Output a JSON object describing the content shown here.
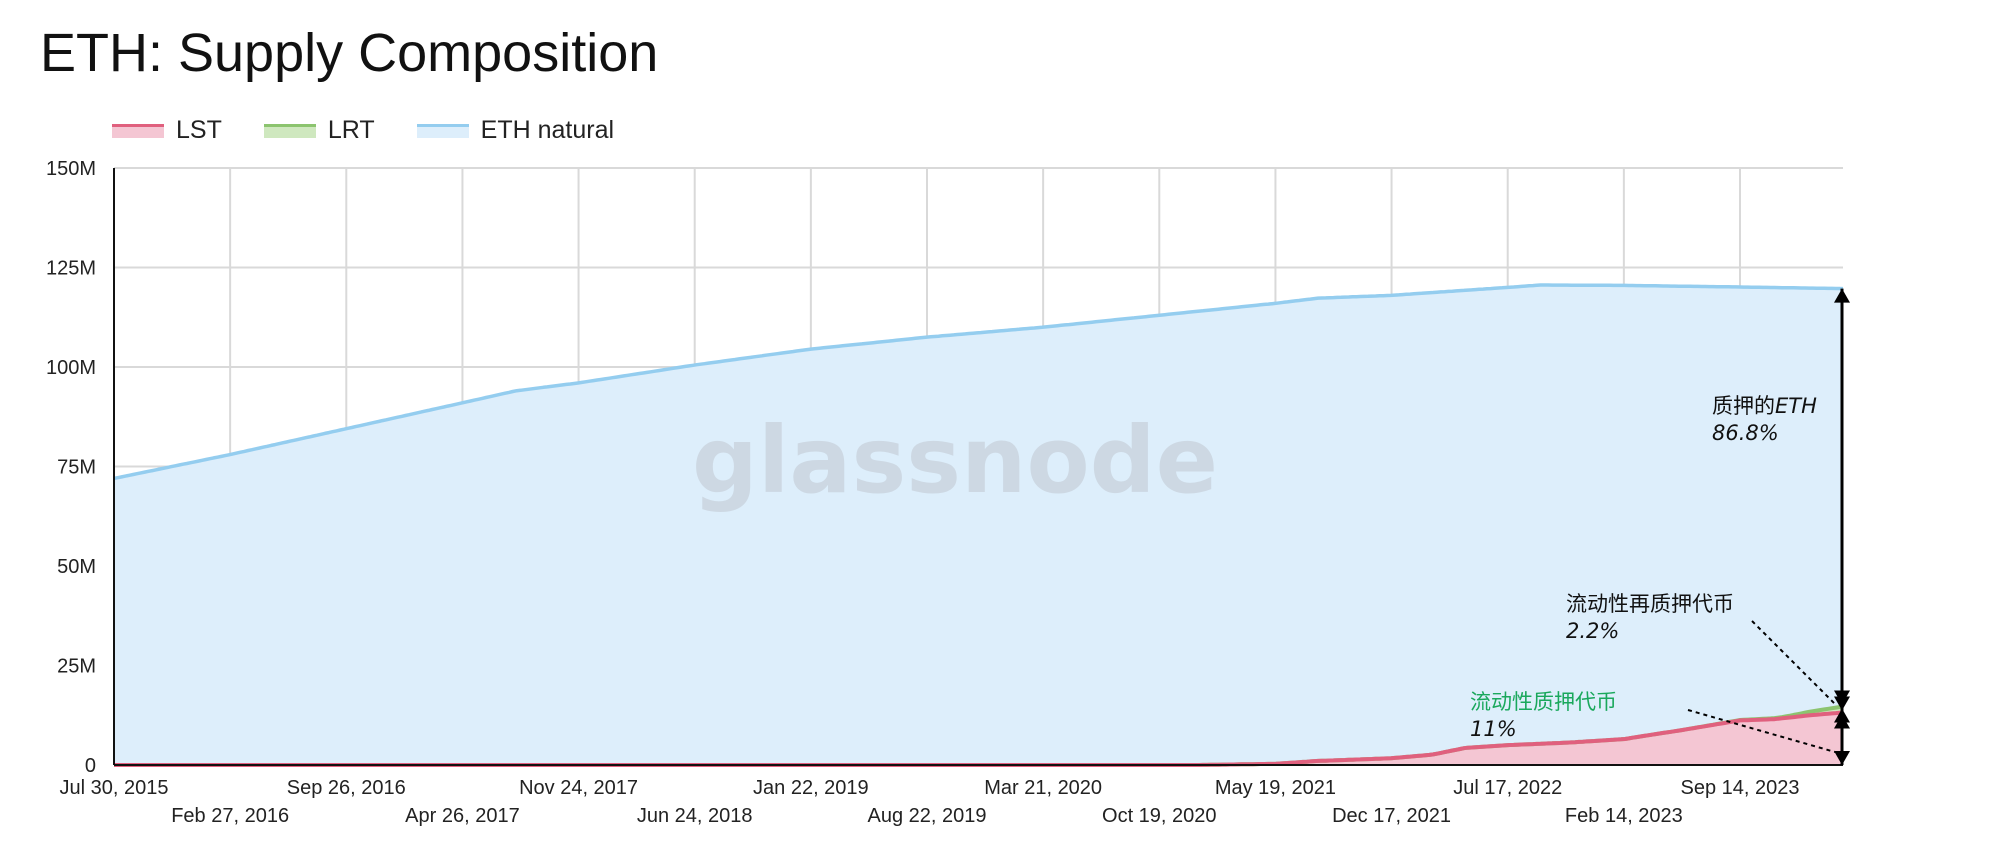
{
  "chart_data": {
    "type": "area",
    "title": "ETH: Supply Composition",
    "watermark": "glassnode",
    "stacked": true,
    "ylim": [
      0,
      150000000
    ],
    "y_ticks": [
      {
        "value": 0,
        "label": "0"
      },
      {
        "value": 25000000,
        "label": "25M"
      },
      {
        "value": 50000000,
        "label": "50M"
      },
      {
        "value": 75000000,
        "label": "75M"
      },
      {
        "value": 100000000,
        "label": "100M"
      },
      {
        "value": 125000000,
        "label": "125M"
      },
      {
        "value": 150000000,
        "label": "150M"
      }
    ],
    "x_ticks": [
      "Jul 30, 2015",
      "Feb 27, 2016",
      "Sep 26, 2016",
      "Apr 26, 2017",
      "Nov 24, 2017",
      "Jun 24, 2018",
      "Jan 22, 2019",
      "Aug 22, 2019",
      "Mar 21, 2020",
      "Oct 19, 2020",
      "May 19, 2021",
      "Dec 17, 2021",
      "Jul 17, 2022",
      "Feb 14, 2023",
      "Sep 14, 2023"
    ],
    "x_range": [
      "2015-07-30",
      "2024-03-20"
    ],
    "grid": true,
    "legend_position": "top-left",
    "series": [
      {
        "name": "LST",
        "line_color": "#e0607e",
        "fill_color": "#f4c6d3",
        "points": [
          [
            "2015-07-30",
            0
          ],
          [
            "2021-01-01",
            0
          ],
          [
            "2021-05-19",
            300000
          ],
          [
            "2021-08-01",
            1000000
          ],
          [
            "2021-12-17",
            1700000
          ],
          [
            "2022-03-01",
            2600000
          ],
          [
            "2022-05-01",
            4300000
          ],
          [
            "2022-07-17",
            5000000
          ],
          [
            "2022-11-01",
            5600000
          ],
          [
            "2023-02-14",
            6500000
          ],
          [
            "2023-04-01",
            7500000
          ],
          [
            "2023-06-01",
            8800000
          ],
          [
            "2023-09-14",
            11200000
          ],
          [
            "2023-11-15",
            11500000
          ],
          [
            "2024-01-20",
            12500000
          ],
          [
            "2024-03-20",
            13200000
          ]
        ]
      },
      {
        "name": "LRT",
        "line_color": "#8cc46f",
        "fill_color": "#cfe8bf",
        "points": [
          [
            "2015-07-30",
            0
          ],
          [
            "2023-06-01",
            0
          ],
          [
            "2023-09-14",
            100000
          ],
          [
            "2023-12-01",
            300000
          ],
          [
            "2024-01-20",
            900000
          ],
          [
            "2024-03-20",
            1500000
          ]
        ]
      },
      {
        "name": "ETH natural",
        "line_color": "#94cdef",
        "fill_color": "#ddeefb",
        "points": [
          [
            "2015-07-30",
            72000000
          ],
          [
            "2016-02-27",
            78000000
          ],
          [
            "2016-09-26",
            84500000
          ],
          [
            "2017-04-26",
            91000000
          ],
          [
            "2017-08-01",
            94000000
          ],
          [
            "2017-11-24",
            96000000
          ],
          [
            "2018-06-24",
            100500000
          ],
          [
            "2019-01-22",
            104500000
          ],
          [
            "2019-08-22",
            107500000
          ],
          [
            "2020-03-21",
            110000000
          ],
          [
            "2020-10-19",
            113000000
          ],
          [
            "2021-05-19",
            116000000
          ],
          [
            "2021-08-05",
            117300000
          ],
          [
            "2021-12-17",
            118000000
          ],
          [
            "2022-04-01",
            119000000
          ],
          [
            "2022-07-17",
            120000000
          ],
          [
            "2022-09-15",
            120600000
          ],
          [
            "2023-02-14",
            120500000
          ],
          [
            "2023-09-14",
            120100000
          ],
          [
            "2024-03-20",
            119700000
          ]
        ]
      }
    ],
    "annotations": [
      {
        "text": "质押的",
        "value": "ETH",
        "pct": "86.8%",
        "color": "#111111"
      },
      {
        "text": "流动性再质押代币",
        "pct": "2.2%",
        "color": "#111111"
      },
      {
        "text": "流动性质押代币",
        "pct": "11%",
        "color": "#1aa85c"
      }
    ]
  }
}
